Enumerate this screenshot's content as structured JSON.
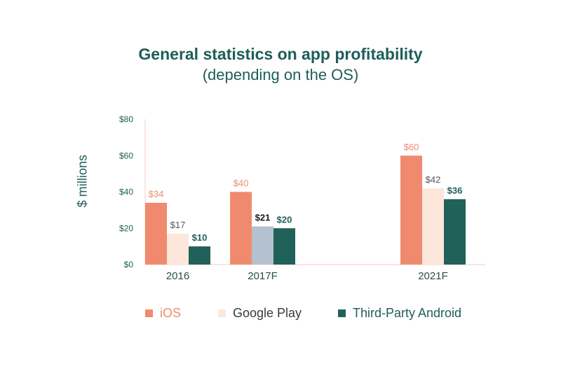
{
  "title": "General statistics on app profitability",
  "subtitle": "(depending on the OS)",
  "colors": {
    "ios": "#f08a6f",
    "google_play": "#fde7da",
    "google_play_highlight": "#b4c1ce",
    "third_party": "#206159",
    "text_dark": "#1e5e58",
    "axis": "#f7cdbf"
  },
  "legend": [
    {
      "name": "iOS",
      "color": "#f08a6f",
      "text_color": "#f08a6f"
    },
    {
      "name": "Google Play",
      "color": "#fde7da",
      "text_color": "#3a3a3a"
    },
    {
      "name": "Third-Party Android",
      "color": "#206159",
      "text_color": "#1e5e58"
    }
  ],
  "chart_data": {
    "type": "bar",
    "title": "General statistics on app profitability",
    "subtitle": "(depending on the OS)",
    "ylabel": "$ millions",
    "xlabel": "",
    "categories": [
      "2016",
      "2017F",
      "2021F"
    ],
    "ylim": [
      0,
      80
    ],
    "yticks": [
      "$0",
      "$20",
      "$40",
      "$60",
      "$80"
    ],
    "ytick_values": [
      0,
      20,
      40,
      60,
      80
    ],
    "grid": false,
    "legend_position": "bottom",
    "series": [
      {
        "name": "iOS",
        "values": [
          34,
          40,
          60
        ],
        "labels": [
          "$34",
          "$40",
          "$60"
        ]
      },
      {
        "name": "Google Play",
        "values": [
          17,
          21,
          42
        ],
        "labels": [
          "$17",
          "$21",
          "$42"
        ]
      },
      {
        "name": "Third-Party Android",
        "values": [
          10,
          20,
          36
        ],
        "labels": [
          "$10",
          "$20",
          "$36"
        ]
      }
    ]
  }
}
